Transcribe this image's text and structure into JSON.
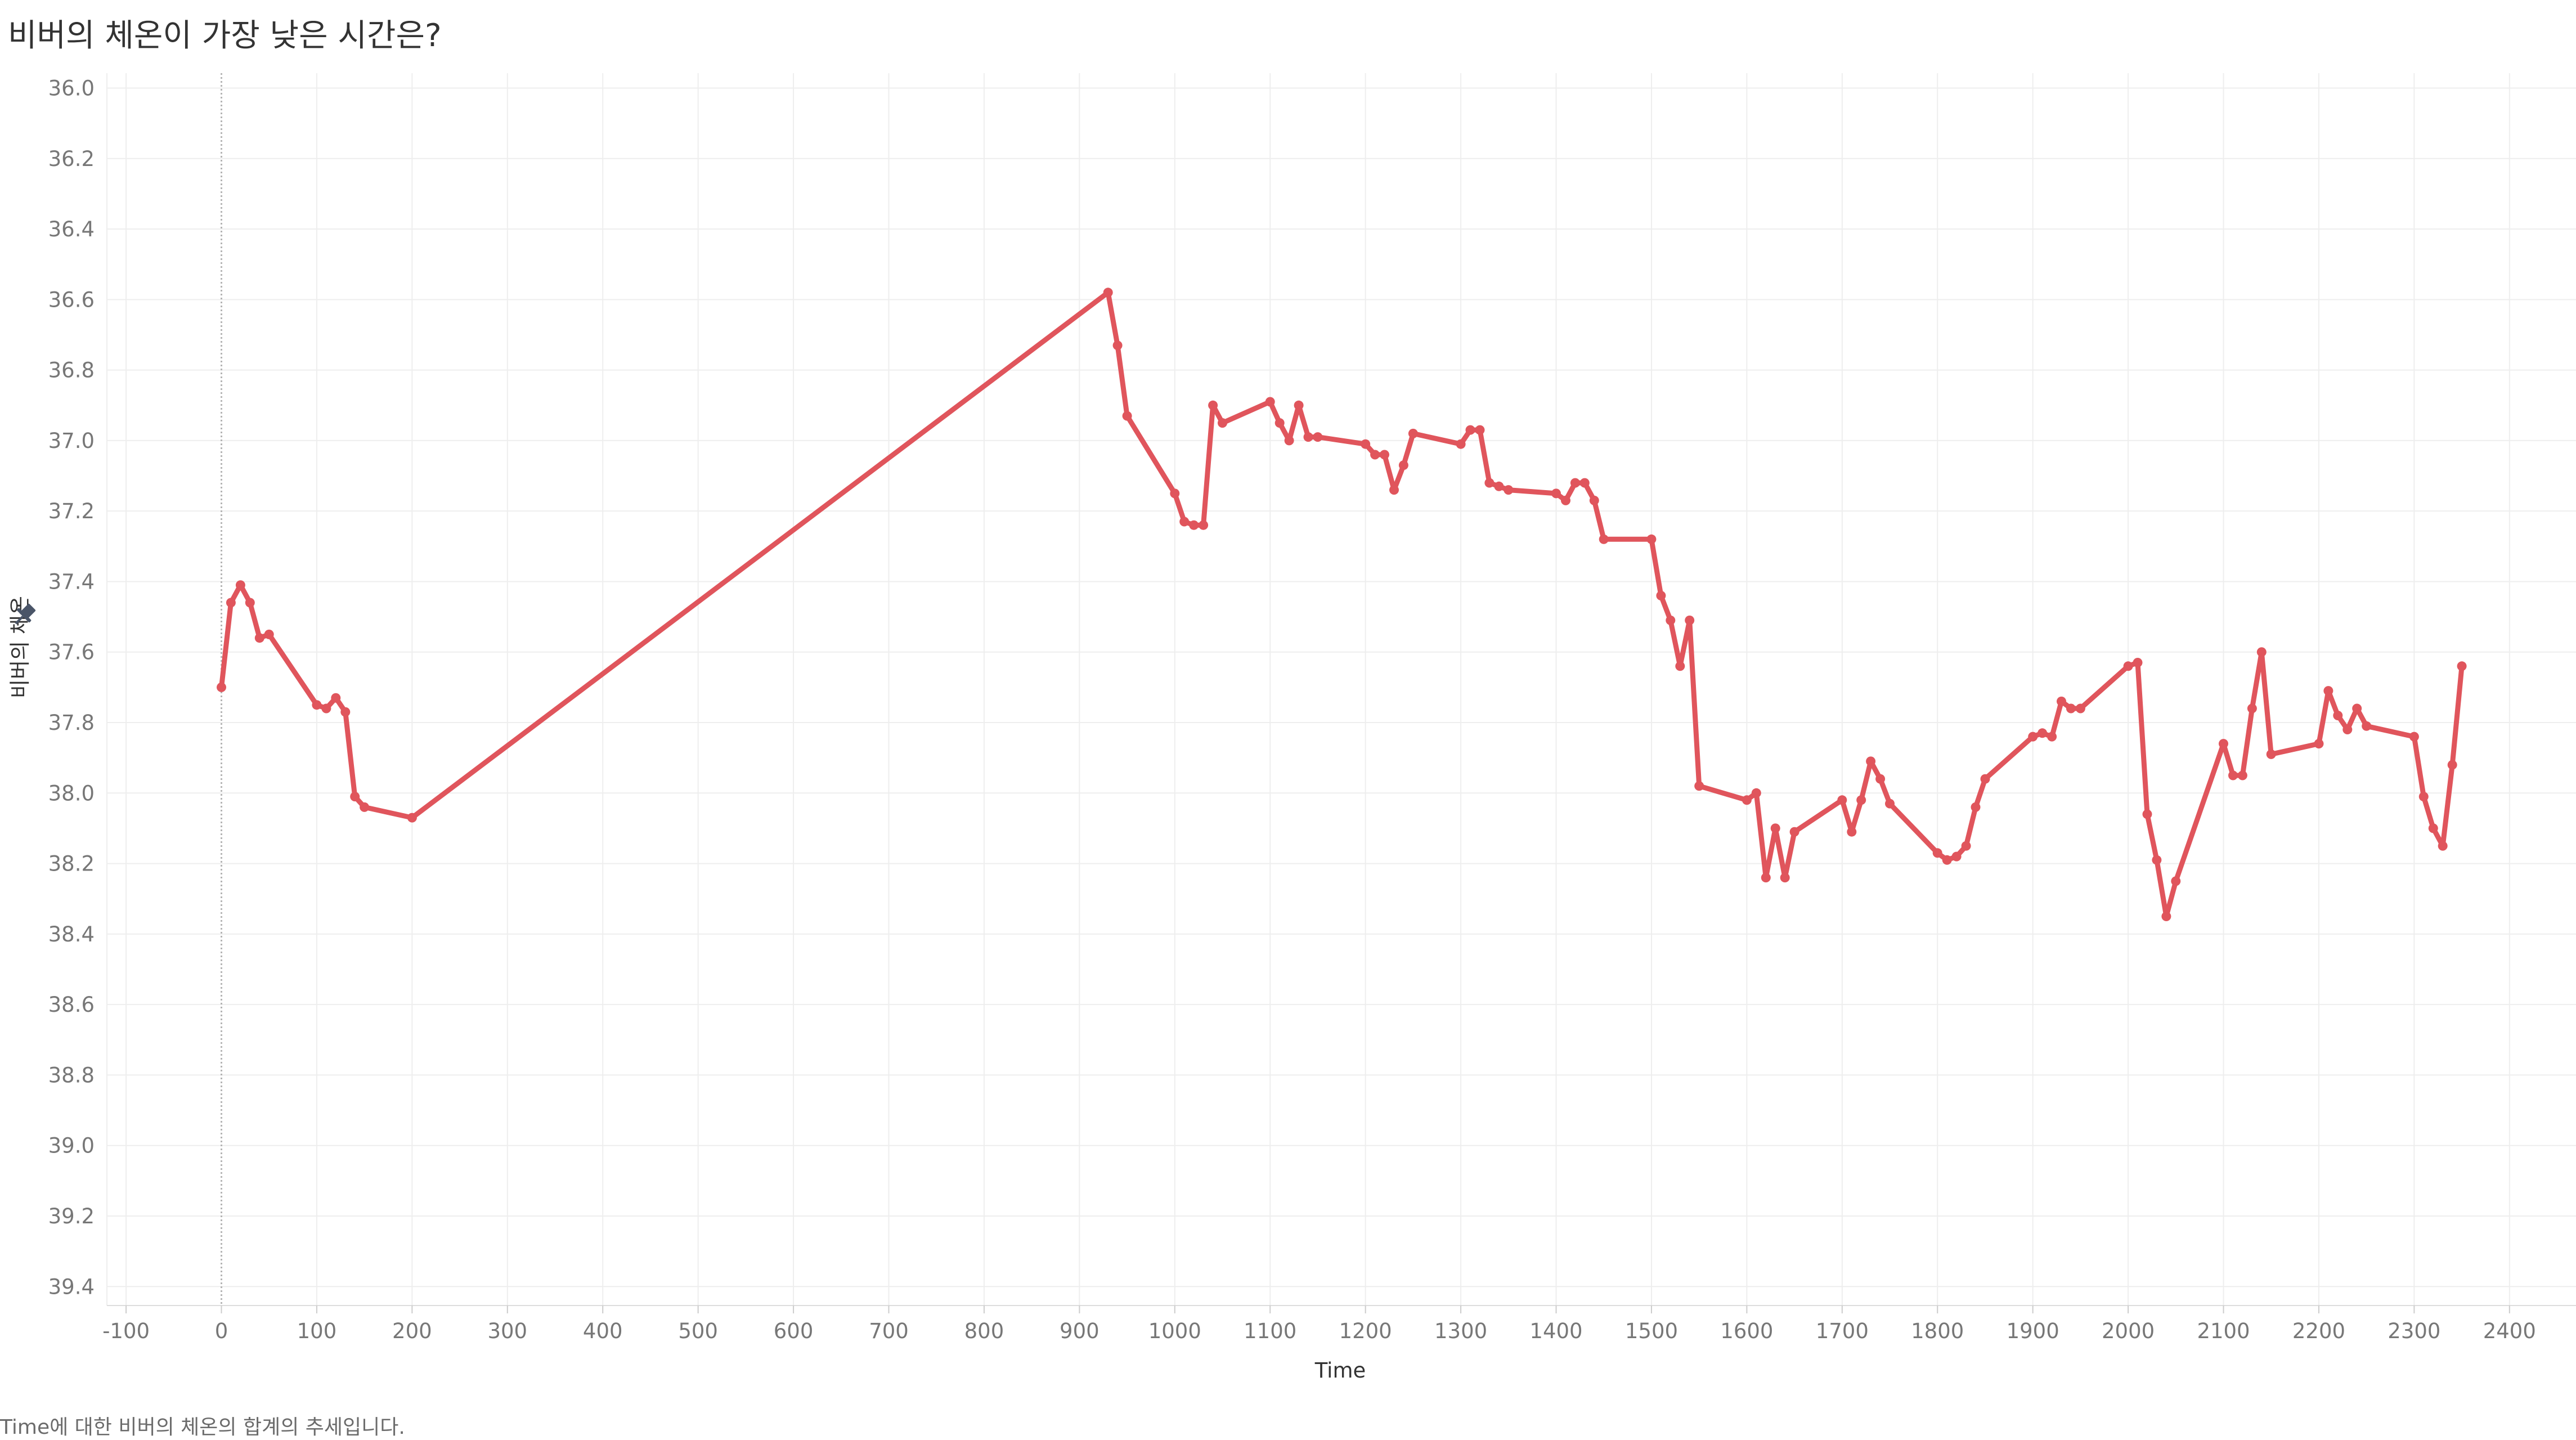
{
  "title": "비버의 체온이 가장 낮은 시간은?",
  "caption": "Time에 대한 비버의 체온의 합계의 추세입니다.",
  "colors": {
    "line": "#e0555c",
    "grid": "#eeeeee",
    "zero_line": "#b5b5b5",
    "tick_text": "#777777",
    "pin_icon": "#4a5568"
  },
  "icons": {
    "ylabel_pin": "pin-icon"
  },
  "chart_data": {
    "type": "line",
    "title": "비버의 체온이 가장 낮은 시간은?",
    "xlabel": "Time",
    "ylabel": "비버의 체온",
    "xlim": [
      -120,
      2450
    ],
    "ylim": [
      36.0,
      39.5
    ],
    "y_inverted": true,
    "grid": true,
    "x_ticks": [
      -100,
      0,
      100,
      200,
      300,
      400,
      500,
      600,
      700,
      800,
      900,
      1000,
      1100,
      1200,
      1300,
      1400,
      1500,
      1600,
      1700,
      1800,
      1900,
      2000,
      2100,
      2200,
      2300,
      2400
    ],
    "y_ticks": [
      36.0,
      36.2,
      36.4,
      36.6,
      36.8,
      37.0,
      37.2,
      37.4,
      37.6,
      37.8,
      38.0,
      38.2,
      38.4,
      38.6,
      38.8,
      39.0,
      39.2,
      39.4
    ],
    "series": [
      {
        "color": "#e0555c",
        "points": [
          [
            0,
            37.7
          ],
          [
            10,
            37.46
          ],
          [
            20,
            37.41
          ],
          [
            30,
            37.46
          ],
          [
            40,
            37.56
          ],
          [
            50,
            37.55
          ],
          [
            100,
            37.75
          ],
          [
            110,
            37.76
          ],
          [
            120,
            37.73
          ],
          [
            130,
            37.77
          ],
          [
            140,
            38.01
          ],
          [
            150,
            38.04
          ],
          [
            200,
            38.07
          ],
          [
            930,
            36.58
          ],
          [
            940,
            36.73
          ],
          [
            950,
            36.93
          ],
          [
            1000,
            37.15
          ],
          [
            1010,
            37.23
          ],
          [
            1020,
            37.24
          ],
          [
            1030,
            37.24
          ],
          [
            1040,
            36.9
          ],
          [
            1050,
            36.95
          ],
          [
            1100,
            36.89
          ],
          [
            1110,
            36.95
          ],
          [
            1120,
            37.0
          ],
          [
            1130,
            36.9
          ],
          [
            1140,
            36.99
          ],
          [
            1150,
            36.99
          ],
          [
            1200,
            37.01
          ],
          [
            1210,
            37.04
          ],
          [
            1220,
            37.04
          ],
          [
            1230,
            37.14
          ],
          [
            1240,
            37.07
          ],
          [
            1250,
            36.98
          ],
          [
            1300,
            37.01
          ],
          [
            1310,
            36.97
          ],
          [
            1320,
            36.97
          ],
          [
            1330,
            37.12
          ],
          [
            1340,
            37.13
          ],
          [
            1350,
            37.14
          ],
          [
            1400,
            37.15
          ],
          [
            1410,
            37.17
          ],
          [
            1420,
            37.12
          ],
          [
            1430,
            37.12
          ],
          [
            1440,
            37.17
          ],
          [
            1450,
            37.28
          ],
          [
            1500,
            37.28
          ],
          [
            1510,
            37.44
          ],
          [
            1520,
            37.51
          ],
          [
            1530,
            37.64
          ],
          [
            1540,
            37.51
          ],
          [
            1550,
            37.98
          ],
          [
            1600,
            38.02
          ],
          [
            1610,
            38.0
          ],
          [
            1620,
            38.24
          ],
          [
            1630,
            38.1
          ],
          [
            1640,
            38.24
          ],
          [
            1650,
            38.11
          ],
          [
            1700,
            38.02
          ],
          [
            1710,
            38.11
          ],
          [
            1720,
            38.02
          ],
          [
            1730,
            37.91
          ],
          [
            1740,
            37.96
          ],
          [
            1750,
            38.03
          ],
          [
            1800,
            38.17
          ],
          [
            1810,
            38.19
          ],
          [
            1820,
            38.18
          ],
          [
            1830,
            38.15
          ],
          [
            1840,
            38.04
          ],
          [
            1850,
            37.96
          ],
          [
            1900,
            37.84
          ],
          [
            1910,
            37.83
          ],
          [
            1920,
            37.84
          ],
          [
            1930,
            37.74
          ],
          [
            1940,
            37.76
          ],
          [
            1950,
            37.76
          ],
          [
            2000,
            37.64
          ],
          [
            2010,
            37.63
          ],
          [
            2020,
            38.06
          ],
          [
            2030,
            38.19
          ],
          [
            2040,
            38.35
          ],
          [
            2050,
            38.25
          ],
          [
            2100,
            37.86
          ],
          [
            2110,
            37.95
          ],
          [
            2120,
            37.95
          ],
          [
            2130,
            37.76
          ],
          [
            2140,
            37.6
          ],
          [
            2150,
            37.89
          ],
          [
            2200,
            37.86
          ],
          [
            2210,
            37.71
          ],
          [
            2220,
            37.78
          ],
          [
            2230,
            37.82
          ],
          [
            2240,
            37.76
          ],
          [
            2250,
            37.81
          ],
          [
            2300,
            37.84
          ],
          [
            2310,
            38.01
          ],
          [
            2320,
            38.1
          ],
          [
            2330,
            38.15
          ],
          [
            2340,
            37.92
          ],
          [
            2350,
            37.64
          ]
        ]
      }
    ]
  }
}
